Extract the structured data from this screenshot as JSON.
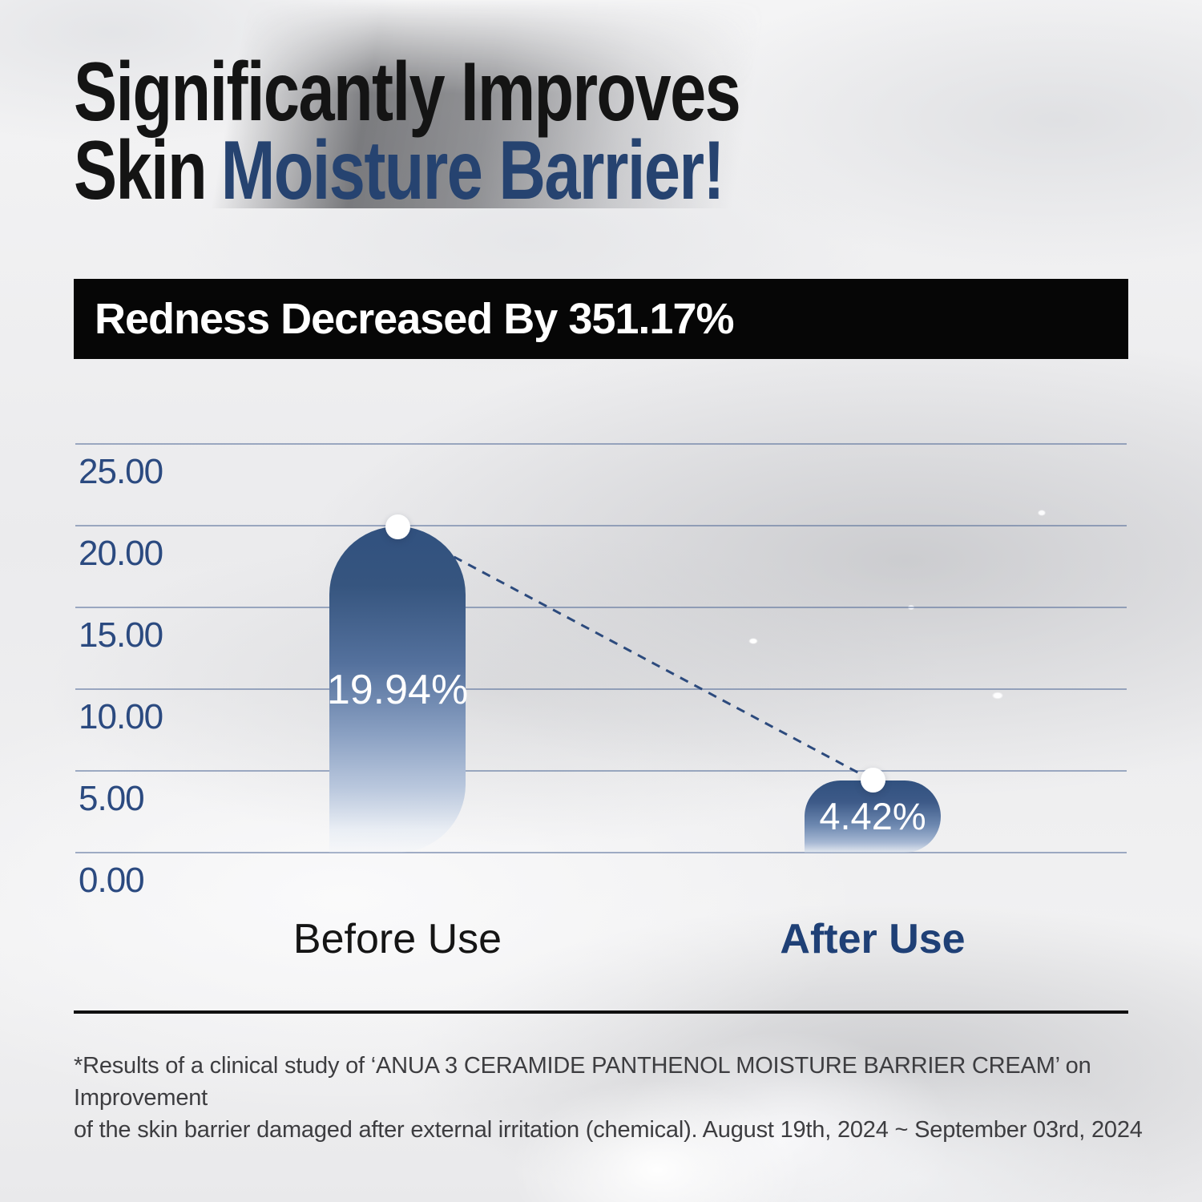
{
  "title": {
    "line1": "Significantly Improves",
    "line2_prefix": "Skin",
    "line2_highlight": "Moisture Barrier!"
  },
  "banner": {
    "text": "Redness Decreased By 351.17%"
  },
  "chart_data": {
    "type": "bar",
    "title": "Redness Decreased By 351.17%",
    "categories": [
      "Before Use",
      "After Use"
    ],
    "values": [
      19.94,
      4.42
    ],
    "value_labels": [
      "19.94%",
      "4.42%"
    ],
    "unit": "%",
    "xlabel": "",
    "ylabel": "",
    "ylim": [
      0,
      25
    ],
    "ytick_values": [
      25,
      20,
      15,
      10,
      5,
      0
    ],
    "ytick_labels": [
      "25.00",
      "20.00",
      "15.00",
      "10.00",
      "5.00",
      "0.00"
    ],
    "grid": true,
    "legend": false,
    "annotations": [
      "dashed connector line between the two data-point dots"
    ]
  },
  "footer": {
    "line1": "*Results of a clinical study of ‘ANUA 3 CERAMIDE PANTHENOL MOISTURE BARRIER CREAM’ on Improvement",
    "line2": "of the skin barrier damaged after external irritation (chemical). August 19th, 2024 ~ September 03rd, 2024"
  },
  "colors": {
    "title_black": "#141414",
    "accent_navy": "#264370",
    "banner_bg": "#060606",
    "banner_text": "#ffffff",
    "axis_blue": "#2b4a80",
    "bar_navy": "#31517f",
    "gridline": "rgba(72,98,146,0.5)",
    "dot_white": "#ffffff"
  }
}
